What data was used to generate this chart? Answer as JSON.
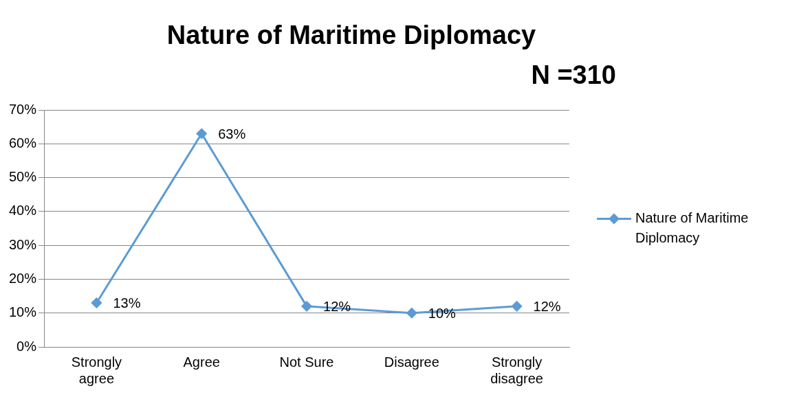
{
  "chart_data": {
    "type": "line",
    "title": "Nature of Maritime Diplomacy",
    "subtitle": "N =310",
    "categories": [
      "Strongly agree",
      "Agree",
      "Not Sure",
      "Disagree",
      "Strongly disagree"
    ],
    "series": [
      {
        "name": "Nature of Maritime Diplomacy",
        "color": "#5b9bd5",
        "values": [
          13,
          63,
          12,
          10,
          12
        ],
        "value_labels": [
          "13%",
          "63%",
          "12%",
          "10%",
          "12%"
        ]
      }
    ],
    "ylim": [
      0,
      70
    ],
    "yticks": [
      {
        "value": 0,
        "label": "0%"
      },
      {
        "value": 10,
        "label": "10%"
      },
      {
        "value": 20,
        "label": "20%"
      },
      {
        "value": 30,
        "label": "30%"
      },
      {
        "value": 40,
        "label": "40%"
      },
      {
        "value": 50,
        "label": "50%"
      },
      {
        "value": 60,
        "label": "60%"
      },
      {
        "value": 70,
        "label": "70%"
      }
    ],
    "grid": "y",
    "legend": "right",
    "marker": "diamond",
    "line_style": "solid"
  }
}
